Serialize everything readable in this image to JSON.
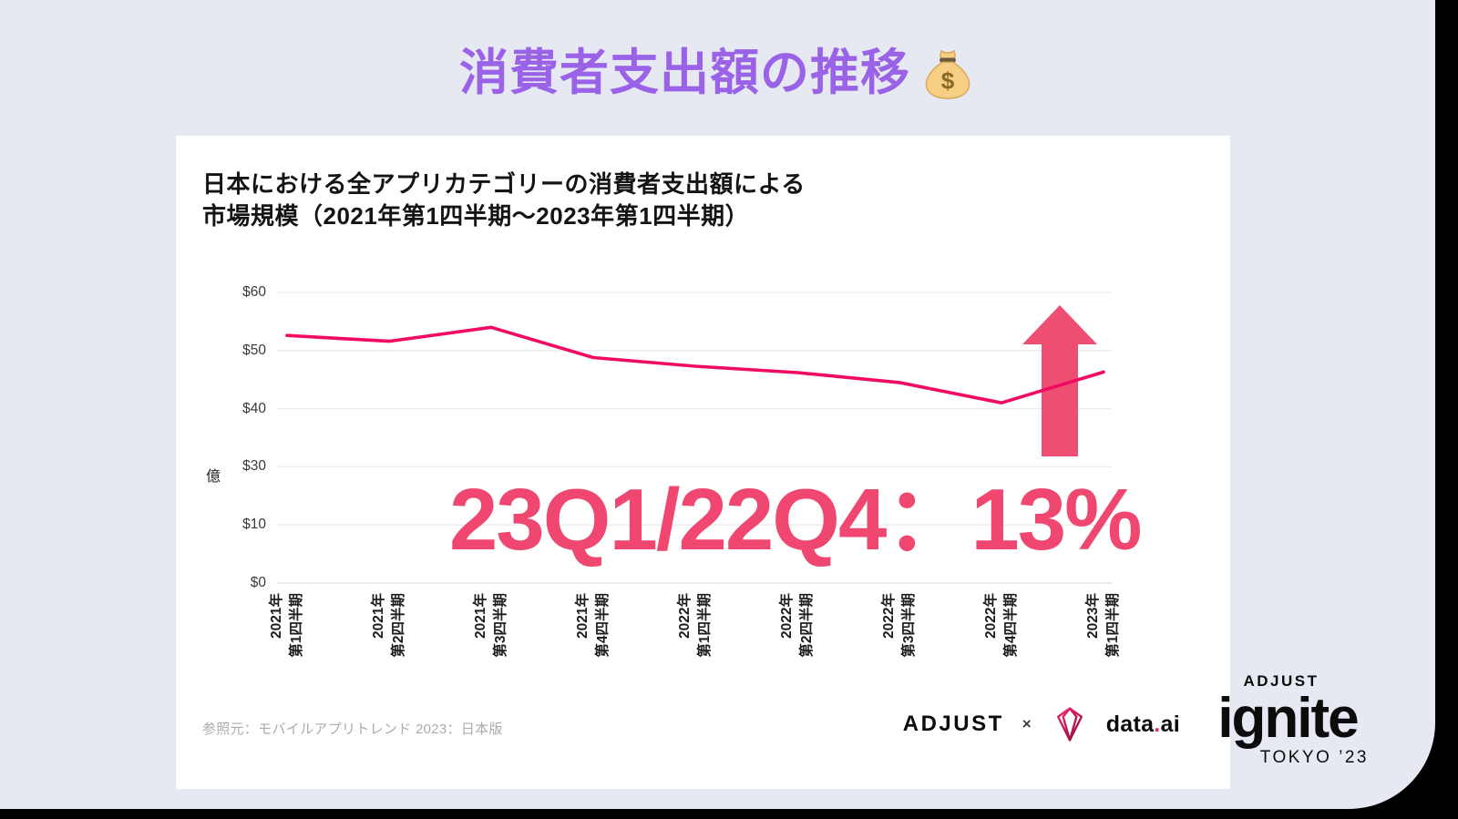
{
  "page": {
    "main_title": "消費者支出額の推移",
    "background_color": "#E6E9F1",
    "corner_color": "#000000",
    "title_color": "#9A63E7"
  },
  "card": {
    "chart_title_line1": "日本における全アプリカテゴリーの消費者支出額による",
    "chart_title_line2": "市場規模（2021年第1四半期〜2023年第1四半期）",
    "source": "参照元：モバイルアプリトレンド 2023：日本版"
  },
  "chart_data": {
    "type": "line",
    "title": "日本における全アプリカテゴリーの消費者支出額による市場規模（2021年第1四半期〜2023年第1四半期）",
    "unit_label": "億",
    "y_axis": {
      "tick_labels": [
        "$60",
        "$50",
        "$40",
        "$30",
        "$10",
        "$0"
      ],
      "tick_values": [
        60,
        50,
        40,
        30,
        10,
        0
      ]
    },
    "x_categories": [
      {
        "year": "2021年",
        "quarter": "第1四半期"
      },
      {
        "year": "2021年",
        "quarter": "第2四半期"
      },
      {
        "year": "2021年",
        "quarter": "第3四半期"
      },
      {
        "year": "2021年",
        "quarter": "第4四半期"
      },
      {
        "year": "2022年",
        "quarter": "第1四半期"
      },
      {
        "year": "2022年",
        "quarter": "第2四半期"
      },
      {
        "year": "2022年",
        "quarter": "第3四半期"
      },
      {
        "year": "2022年",
        "quarter": "第4四半期"
      },
      {
        "year": "2023年",
        "quarter": "第1四半期"
      }
    ],
    "values": [
      52.6,
      51.6,
      54.0,
      48.8,
      47.3,
      46.2,
      44.5,
      41.0,
      46.3
    ],
    "line_color": "#F00A62",
    "grid": true,
    "legend": false,
    "annotation": {
      "text": "23Q1/22Q4：13%",
      "color": "#EF476F",
      "arrow": "up",
      "arrow_color": "#EF4E73"
    }
  },
  "logos": {
    "adjust": "ADJUST",
    "multiply": "×",
    "dataai_data": "data",
    "dataai_dot": ".",
    "dataai_ai": "ai",
    "gem_icon": "dataai-gem-icon"
  },
  "ignite": {
    "adjust": "ADJUST",
    "wordmark": "ignite",
    "event": "TOKYO ’23"
  },
  "icons": {
    "title_emoji": "money-bag-icon"
  }
}
